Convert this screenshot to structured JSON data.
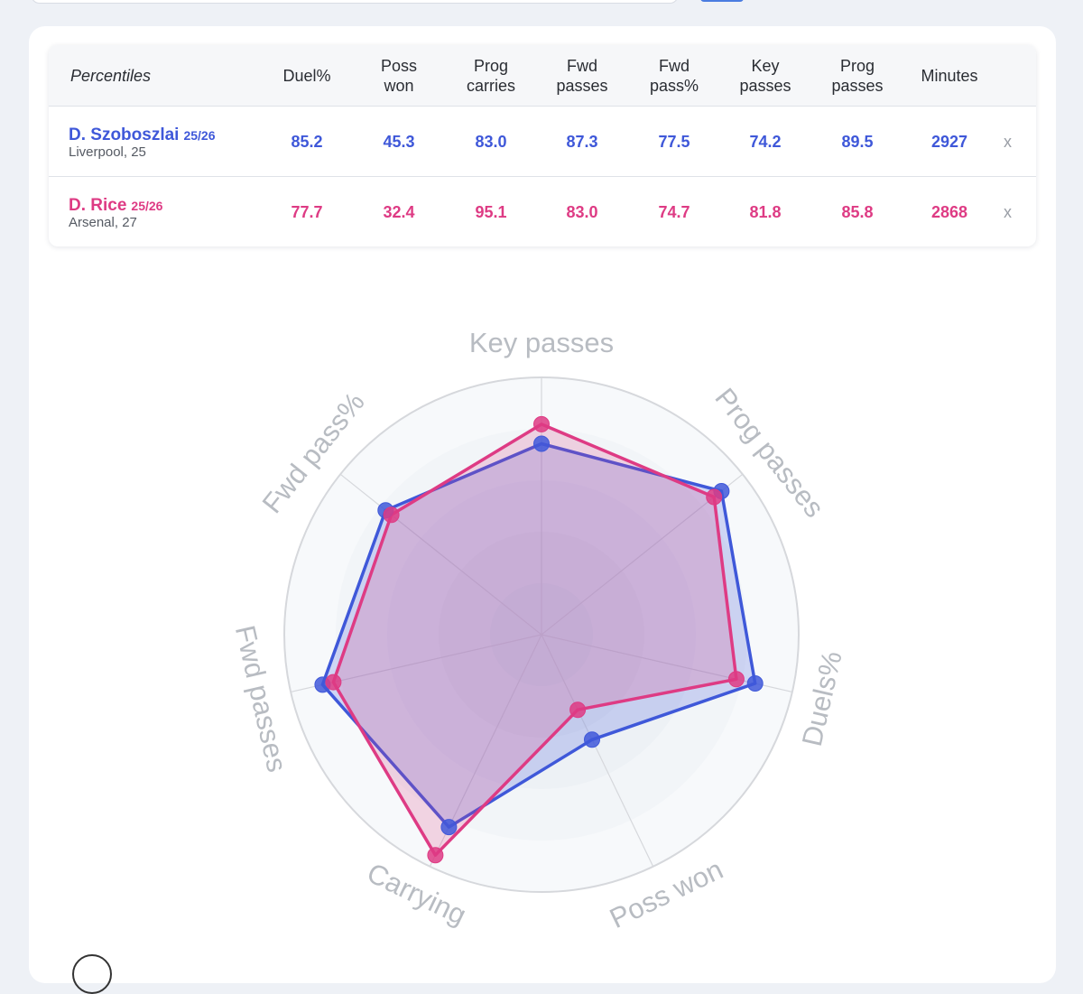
{
  "colors": {
    "szoboszlai": "#3f58d9",
    "rice": "#de3b84",
    "grid": "#d6d8dc",
    "label": "#b8bcc2"
  },
  "table": {
    "corner_label": "Percentiles",
    "columns": [
      "Duel%",
      "Poss\nwon",
      "Prog\ncarries",
      "Fwd\npasses",
      "Fwd\npass%",
      "Key\npasses",
      "Prog\npasses",
      "Minutes"
    ],
    "rows": [
      {
        "name": "D. Szoboszlai",
        "season": "25/26",
        "team": "Liverpool, 25",
        "values": [
          "85.2",
          "45.3",
          "83.0",
          "87.3",
          "77.5",
          "74.2",
          "89.5",
          "2927"
        ],
        "remove_label": "x"
      },
      {
        "name": "D. Rice",
        "season": "25/26",
        "team": "Arsenal, 27",
        "values": [
          "77.7",
          "32.4",
          "95.1",
          "83.0",
          "74.7",
          "81.8",
          "85.8",
          "2868"
        ],
        "remove_label": "x"
      }
    ]
  },
  "chart_data": {
    "type": "radar",
    "axes": [
      "Key passes",
      "Prog passes",
      "Duels%",
      "Poss won",
      "Carrying",
      "Fwd passes",
      "Fwd pass%"
    ],
    "range": [
      0,
      100
    ],
    "grid": true,
    "series": [
      {
        "name": "D. Szoboszlai",
        "values": [
          74.2,
          89.5,
          85.2,
          45.3,
          83.0,
          87.3,
          77.5
        ]
      },
      {
        "name": "D. Rice",
        "values": [
          81.8,
          85.8,
          77.7,
          32.4,
          95.1,
          83.0,
          74.7
        ]
      }
    ]
  }
}
